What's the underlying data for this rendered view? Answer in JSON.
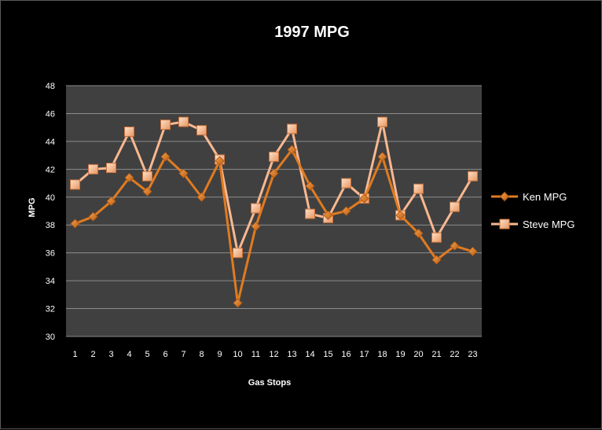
{
  "chart_data": {
    "type": "line",
    "title": "1997 MPG",
    "xlabel": "Gas Stops",
    "ylabel": "MPG",
    "x": [
      1,
      2,
      3,
      4,
      5,
      6,
      7,
      8,
      9,
      10,
      11,
      12,
      13,
      14,
      15,
      16,
      17,
      18,
      19,
      20,
      21,
      22,
      23
    ],
    "ylim": [
      30,
      48
    ],
    "yticks": [
      30,
      32,
      34,
      36,
      38,
      40,
      42,
      44,
      46,
      48
    ],
    "grid": true,
    "legend": "right",
    "plot_background": "#404040",
    "series": [
      {
        "name": "Ken MPG",
        "color": "#e07b20",
        "marker": "diamond",
        "values": [
          38.1,
          38.6,
          39.7,
          41.4,
          40.4,
          42.9,
          41.7,
          40.0,
          42.6,
          32.4,
          37.9,
          41.7,
          43.4,
          40.8,
          38.7,
          39.0,
          39.9,
          42.9,
          38.7,
          37.4,
          35.5,
          36.5,
          36.1
        ]
      },
      {
        "name": "Steve MPG",
        "color": "#f8b890",
        "marker": "square",
        "values": [
          40.9,
          42.0,
          42.1,
          44.7,
          41.5,
          45.2,
          45.4,
          44.8,
          42.7,
          36.0,
          39.2,
          42.9,
          44.9,
          38.8,
          38.5,
          41.0,
          39.9,
          45.4,
          38.7,
          40.6,
          37.1,
          39.3,
          41.5
        ]
      }
    ]
  }
}
